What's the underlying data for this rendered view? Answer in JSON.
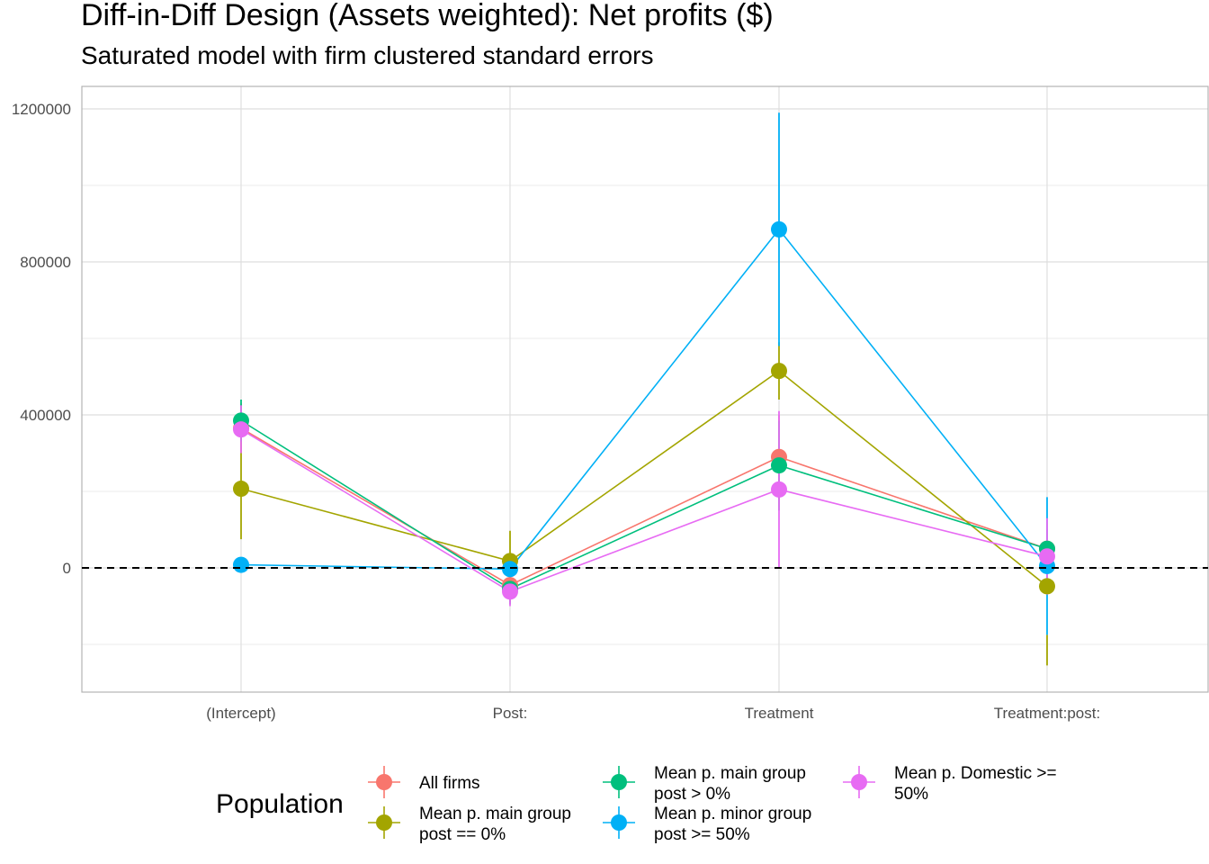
{
  "chart_data": {
    "type": "line",
    "title": "Diff-in-Diff Design (Assets weighted): Net profits  ($)",
    "subtitle": "Saturated model with firm clustered standard errors",
    "xlabel": "",
    "ylabel": "",
    "categories": [
      "(Intercept)",
      "Post:",
      "Treatment",
      "Treatment:post:"
    ],
    "y_ticks": [
      0,
      400000,
      800000,
      1200000
    ],
    "ylim": [
      -325000,
      1260000
    ],
    "reference_line": 0,
    "grid": true,
    "legend": {
      "title": "Population",
      "placement": "bottom"
    },
    "series": [
      {
        "name": "All firms",
        "legend_lines": [
          "All firms"
        ],
        "color": "#F8766D",
        "values": [
          365000,
          -45000,
          290000,
          50000
        ],
        "error_low": [
          300000,
          -90000,
          180000,
          0
        ],
        "error_high": [
          430000,
          0,
          400000,
          100000
        ]
      },
      {
        "name": "Mean p. main group post == 0%",
        "legend_lines": [
          "Mean p. main group",
          "post == 0%"
        ],
        "color": "#A3A500",
        "values": [
          207000,
          18000,
          515000,
          -48000
        ],
        "error_low": [
          75000,
          -60000,
          440000,
          -255000
        ],
        "error_high": [
          340000,
          97000,
          590000,
          -175000
        ]
      },
      {
        "name": "Mean p. main group post > 0%",
        "legend_lines": [
          "Mean p. main group",
          "post > 0%"
        ],
        "color": "#00BF7D",
        "values": [
          385000,
          -55000,
          268000,
          50000
        ],
        "error_low": [
          330000,
          -95000,
          150000,
          0
        ],
        "error_high": [
          440000,
          -15000,
          385000,
          100000
        ]
      },
      {
        "name": "Mean p. minor group post >= 50%",
        "legend_lines": [
          "Mean p. minor group",
          "post >= 50%"
        ],
        "color": "#00B0F6",
        "values": [
          8000,
          -3000,
          885000,
          5000
        ],
        "error_low": [
          -10000,
          -20000,
          580000,
          -175000
        ],
        "error_high": [
          26000,
          14000,
          1190000,
          185000
        ]
      },
      {
        "name": "Mean p. Domestic >= 50%",
        "legend_lines": [
          "Mean p. Domestic >=",
          "50%"
        ],
        "color": "#E76BF3",
        "values": [
          362000,
          -62000,
          205000,
          30000
        ],
        "error_low": [
          300000,
          -100000,
          0,
          -70000
        ],
        "error_high": [
          425000,
          -25000,
          410000,
          130000
        ]
      }
    ]
  }
}
